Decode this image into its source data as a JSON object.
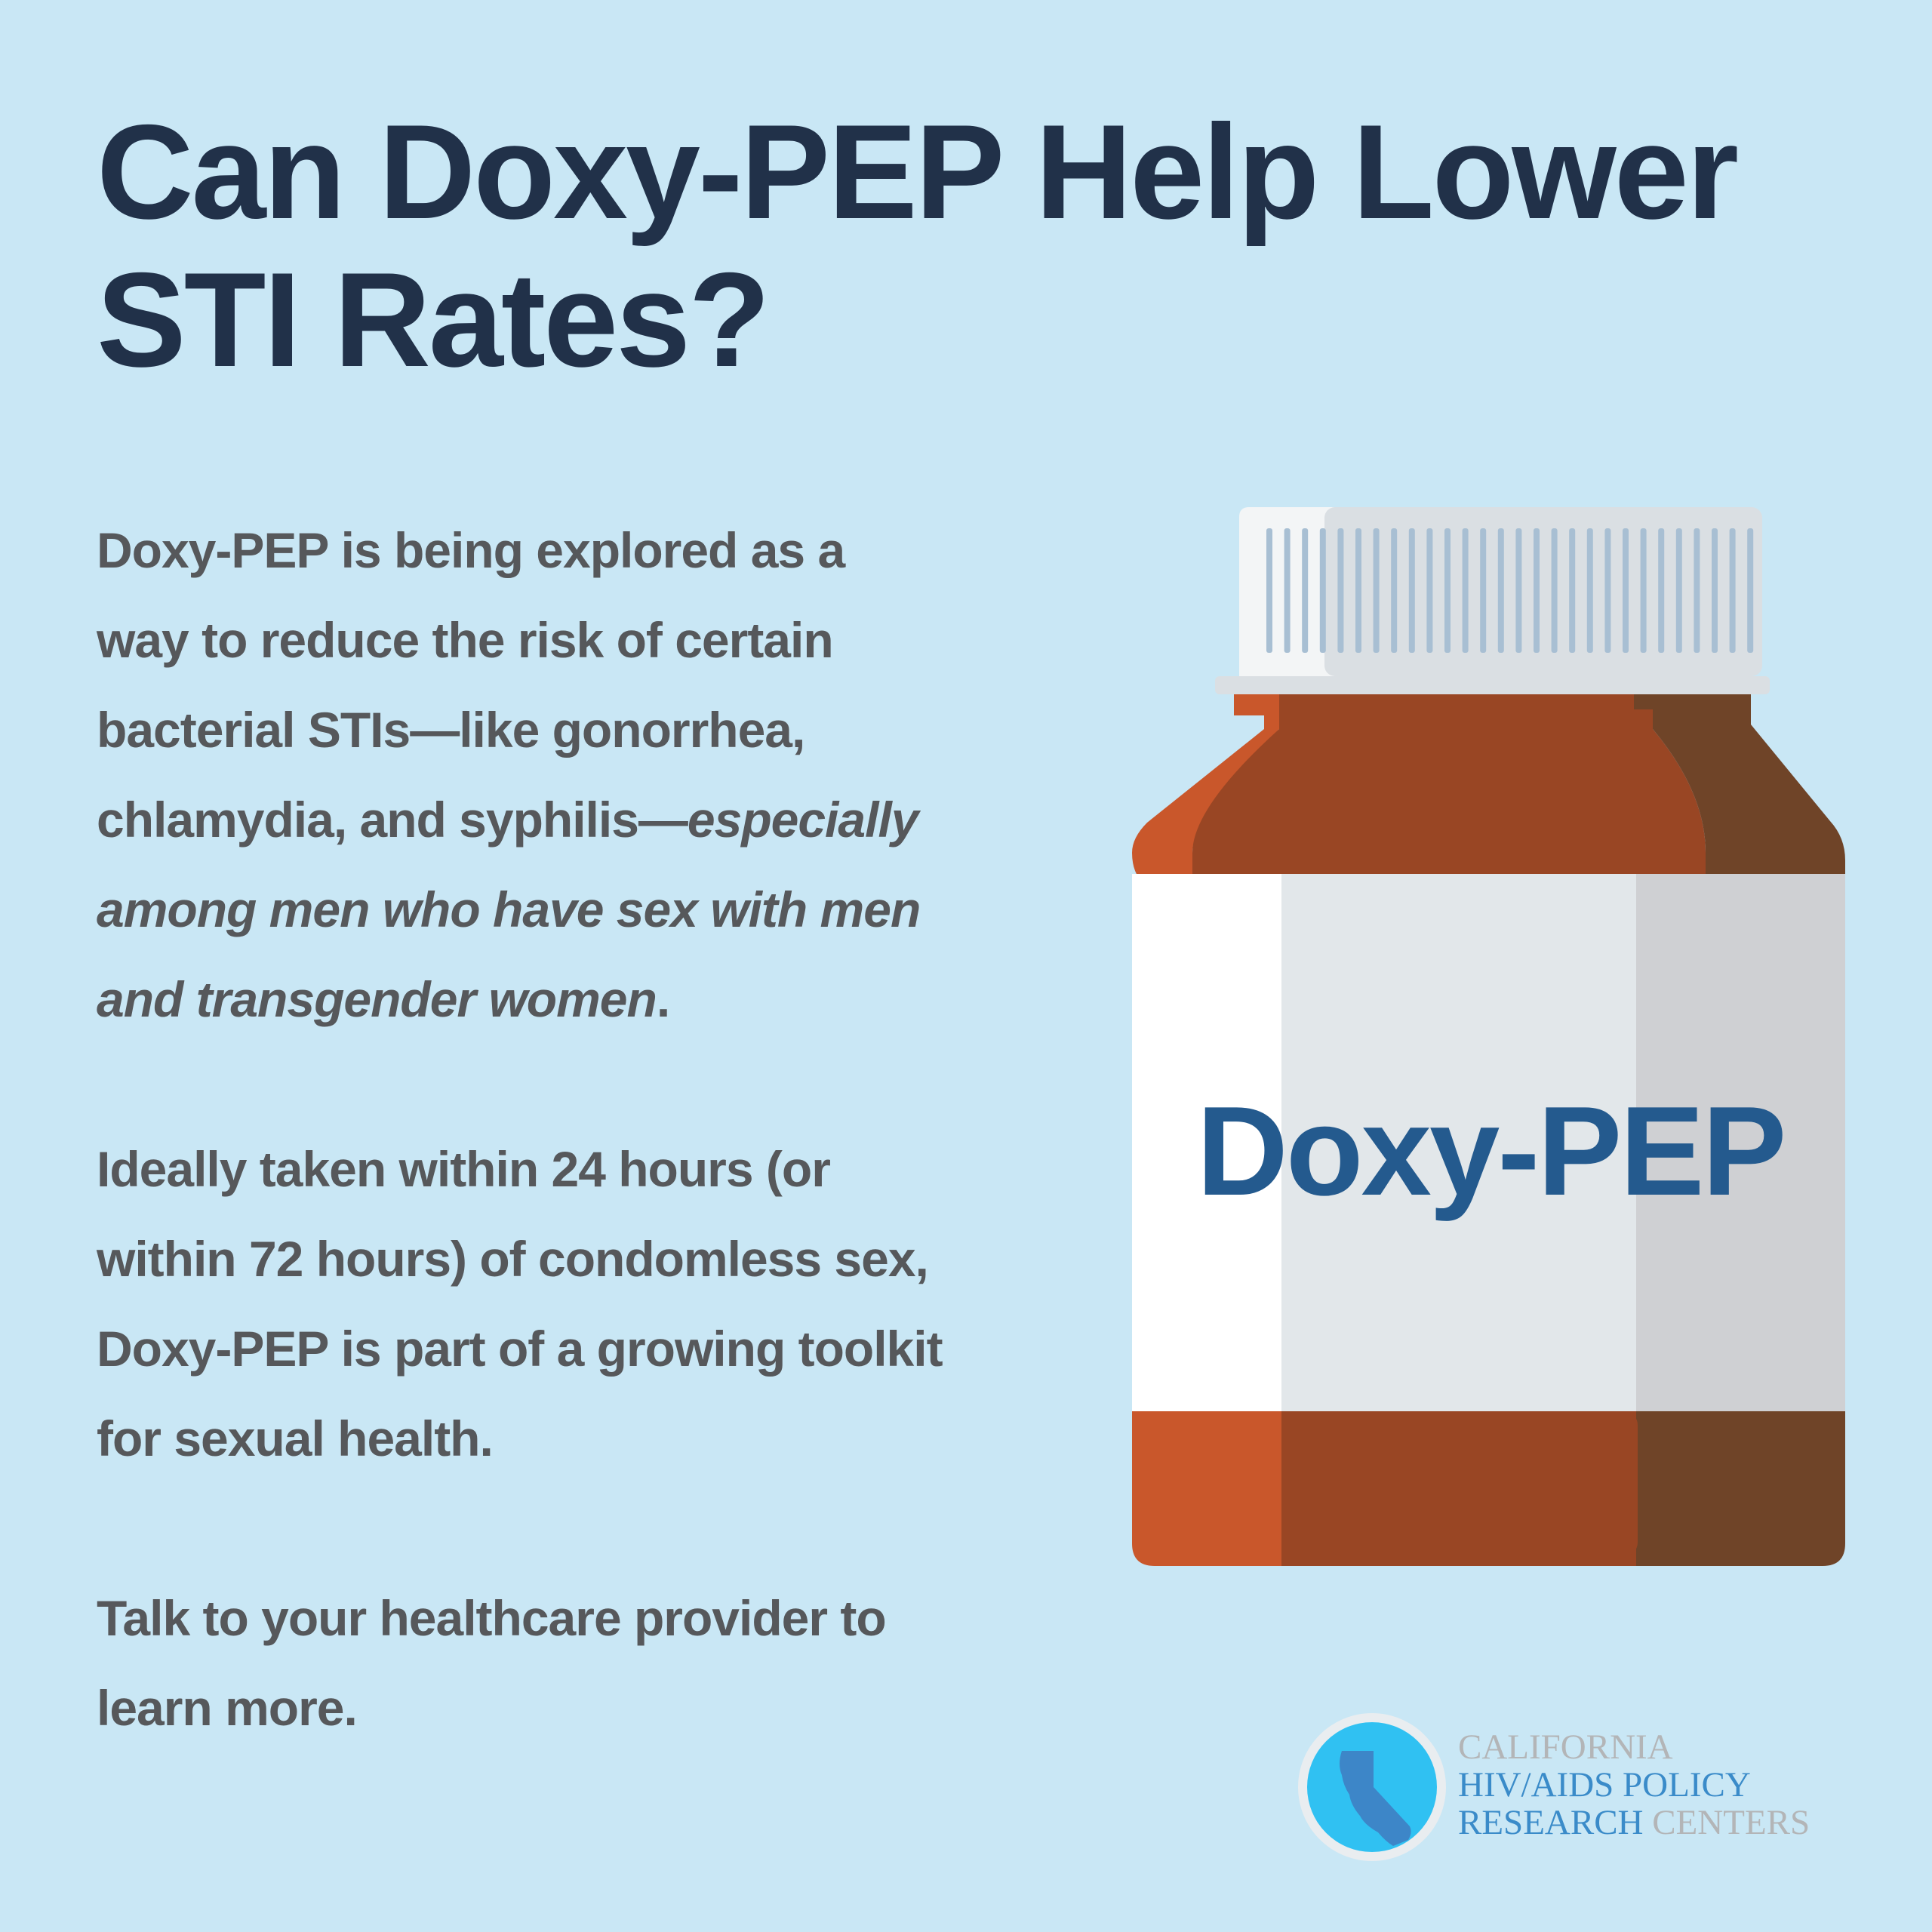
{
  "colors": {
    "background": "#c9e7f5",
    "title": "#213149",
    "body_text": "#56585b",
    "bottle_label_text": "#245a8e",
    "bottle_body_light": "#c9572b",
    "bottle_body_mid": "#994624",
    "bottle_body_dark": "#6f4428",
    "cap_light": "#f3f5f6",
    "cap_mid": "#dadfe3",
    "cap_ridge": "#a8bfd3",
    "label_white": "#ffffff",
    "label_mid": "#e2e7ea",
    "label_dark": "#cfd0d3",
    "logo_circle": "#30c1f2",
    "logo_state": "#3d86c8",
    "logo_gray": "#b3b5b7",
    "logo_blue": "#3a8bc9"
  },
  "title": {
    "line1": "Can Doxy-PEP Help Lower",
    "line2": "STI Rates?"
  },
  "paragraph1": {
    "line1": "Doxy-PEP is being explored as a",
    "line2": "way to reduce the risk of certain",
    "line3": "bacterial STIs—like gonorrhea,",
    "line4_plain": "chlamydia, and syphilis—",
    "line4_italic": "especially",
    "line5_italic": "among men who have sex with men",
    "line6_italic": "and transgender women",
    "line6_end": "."
  },
  "paragraph2": {
    "line1": "Ideally taken within 24 hours (or",
    "line2": "within 72 hours) of condomless sex,",
    "line3": "Doxy-PEP is part of a growing toolkit",
    "line4": "for sexual health."
  },
  "paragraph3": {
    "line1": "Talk to your healthcare provider to",
    "line2": "learn more."
  },
  "bottle": {
    "label": "Doxy-PEP",
    "icon": "pill-bottle-icon"
  },
  "logo": {
    "icon": "california-state-icon",
    "line1": "CALIFORNIA",
    "line2_a": "HIV",
    "line2_slash": "/",
    "line2_b": "AIDS POLICY",
    "line3_a": "RESEARCH",
    "line3_b": " CENTERS"
  }
}
